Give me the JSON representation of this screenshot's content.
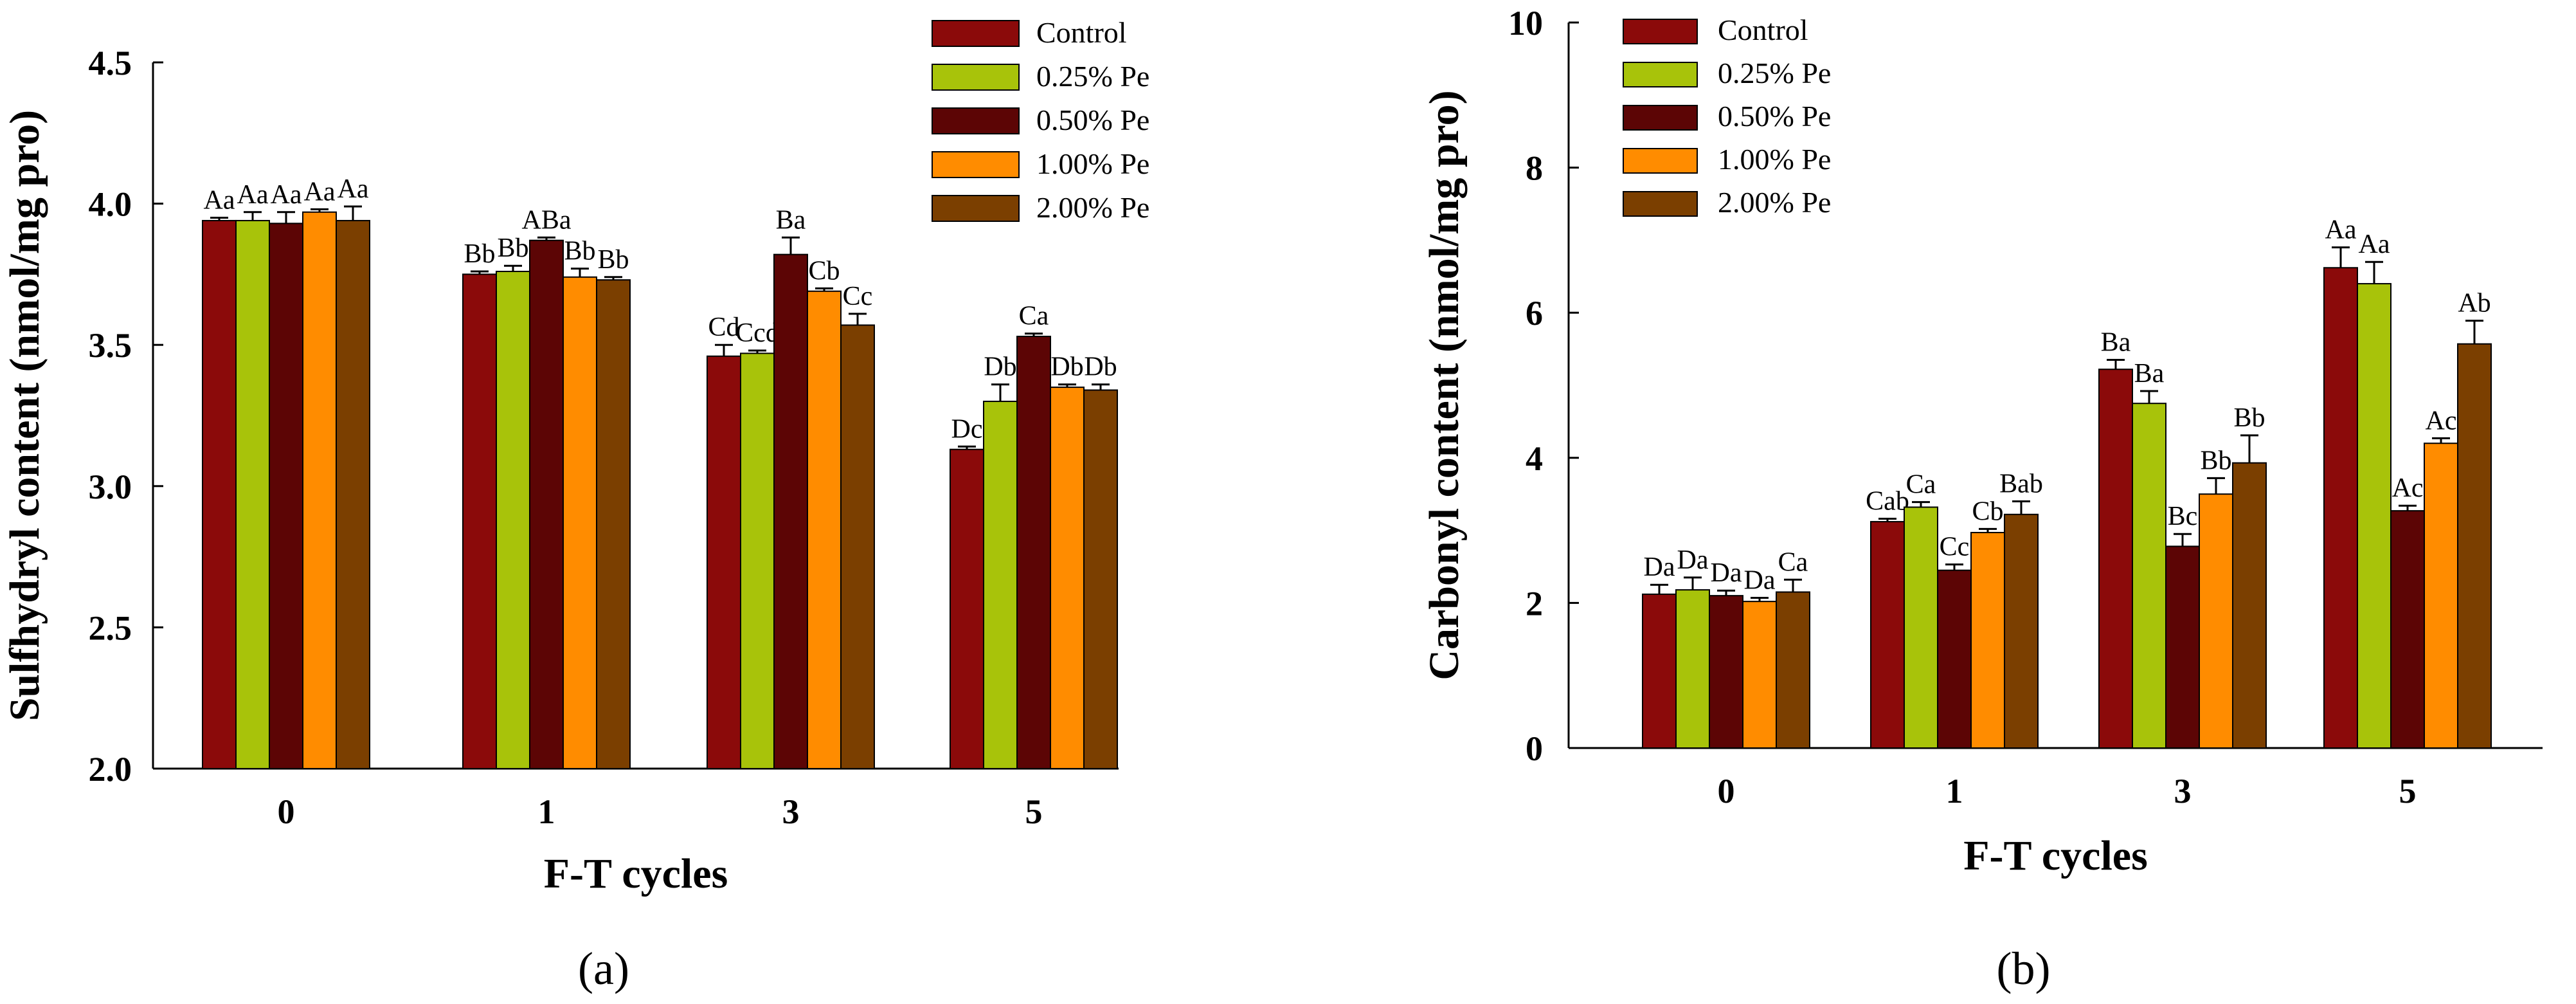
{
  "chart_data": [
    {
      "type": "bar",
      "panel_label": "(a)",
      "title": "",
      "xlabel": "F-T cycles",
      "ylabel": "Sulfhydryl content (nmol/mg pro)",
      "ylim": [
        2.0,
        4.5
      ],
      "yticks": [
        2.0,
        2.5,
        3.0,
        3.5,
        4.0,
        4.5
      ],
      "ytick_labels": [
        "2.0",
        "2.5",
        "3.0",
        "3.5",
        "4.0",
        "4.5"
      ],
      "categories": [
        "0",
        "1",
        "3",
        "5"
      ],
      "legend_position": "top-right",
      "series": [
        {
          "name": "Control",
          "color": "#8B0A0A",
          "values": [
            3.94,
            3.75,
            3.46,
            3.13
          ],
          "errors": [
            0.01,
            0.01,
            0.04,
            0.01
          ],
          "labels": [
            "Aa",
            "Bb",
            "Cd",
            "Dc"
          ]
        },
        {
          "name": "0.25% Pe",
          "color": "#A8C30A",
          "values": [
            3.94,
            3.76,
            3.47,
            3.3
          ],
          "errors": [
            0.03,
            0.02,
            0.01,
            0.06
          ],
          "labels": [
            "Aa",
            "Bb",
            "Ccd",
            "Db"
          ]
        },
        {
          "name": "0.50% Pe",
          "color": "#5C0505",
          "values": [
            3.93,
            3.87,
            3.82,
            3.53
          ],
          "errors": [
            0.04,
            0.01,
            0.06,
            0.01
          ],
          "labels": [
            "Aa",
            "ABa",
            "Ba",
            "Ca"
          ]
        },
        {
          "name": "1.00% Pe",
          "color": "#FF8C00",
          "values": [
            3.97,
            3.74,
            3.69,
            3.35
          ],
          "errors": [
            0.01,
            0.03,
            0.01,
            0.01
          ],
          "labels": [
            "Aa",
            "Bb",
            "Cb",
            "Db"
          ]
        },
        {
          "name": "2.00% Pe",
          "color": "#7B3F00",
          "values": [
            3.94,
            3.73,
            3.57,
            3.34
          ],
          "errors": [
            0.05,
            0.01,
            0.04,
            0.02
          ],
          "labels": [
            "Aa",
            "Bb",
            "Cc",
            "Db"
          ]
        }
      ]
    },
    {
      "type": "bar",
      "panel_label": "(b)",
      "title": "",
      "xlabel": "F-T cycles",
      "ylabel": "Carbonyl content (nmol/mg pro)",
      "ylim": [
        0,
        10
      ],
      "yticks": [
        0,
        2,
        4,
        6,
        8,
        10
      ],
      "ytick_labels": [
        "0",
        "2",
        "4",
        "6",
        "8",
        "10"
      ],
      "categories": [
        "0",
        "1",
        "3",
        "5"
      ],
      "legend_position": "top-left",
      "series": [
        {
          "name": "Control",
          "color": "#8B0A0A",
          "values": [
            2.12,
            3.12,
            5.22,
            6.62
          ],
          "errors": [
            0.13,
            0.04,
            0.13,
            0.28
          ],
          "labels": [
            "Da",
            "Cab",
            "Ba",
            "Aa"
          ]
        },
        {
          "name": "0.25% Pe",
          "color": "#A8C30A",
          "values": [
            2.18,
            3.32,
            4.75,
            6.4
          ],
          "errors": [
            0.17,
            0.07,
            0.17,
            0.3
          ],
          "labels": [
            "Da",
            "Ca",
            "Ba",
            "Aa"
          ]
        },
        {
          "name": "0.50% Pe",
          "color": "#5C0505",
          "values": [
            2.1,
            2.45,
            2.78,
            3.27
          ],
          "errors": [
            0.07,
            0.08,
            0.17,
            0.07
          ],
          "labels": [
            "Da",
            "Cc",
            "Bc",
            "Ac"
          ]
        },
        {
          "name": "1.00% Pe",
          "color": "#FF8C00",
          "values": [
            2.02,
            2.97,
            3.5,
            4.2
          ],
          "errors": [
            0.05,
            0.05,
            0.22,
            0.07
          ],
          "labels": [
            "Da",
            "Cb",
            "Bb",
            "Ac"
          ]
        },
        {
          "name": "2.00% Pe",
          "color": "#7B3F00",
          "values": [
            2.15,
            3.22,
            3.93,
            5.57
          ],
          "errors": [
            0.17,
            0.18,
            0.38,
            0.32
          ],
          "labels": [
            "Ca",
            "Bab",
            "Bb",
            "Ab"
          ]
        }
      ]
    }
  ]
}
